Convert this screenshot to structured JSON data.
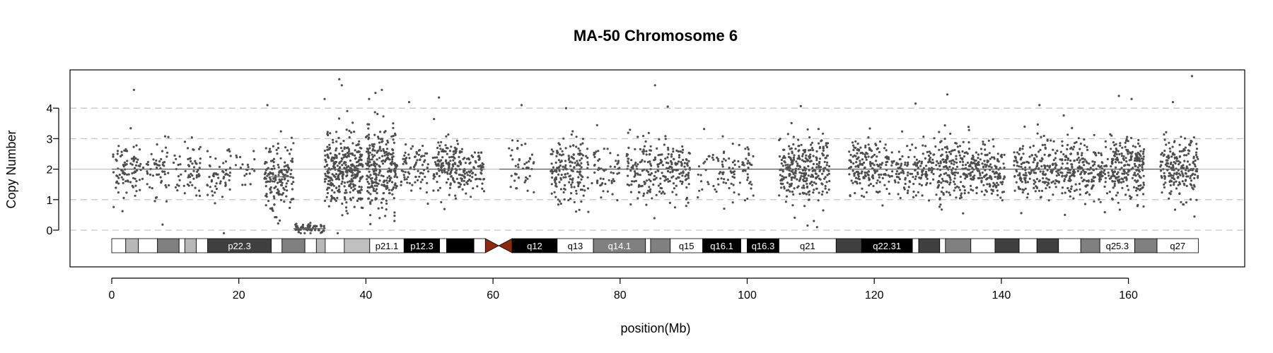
{
  "chart_data": {
    "type": "scatter",
    "title": "MA-50  Chromosome 6",
    "xlabel": "position(Mb)",
    "ylabel": "Copy Number",
    "xlim": [
      0,
      171
    ],
    "ylim": [
      -1.2,
      5.0
    ],
    "x_ticks": [
      0,
      20,
      40,
      60,
      80,
      100,
      120,
      140,
      160
    ],
    "y_ticks": [
      0,
      1,
      2,
      3,
      4
    ],
    "dashed_grid_y": [
      0,
      1,
      3,
      4
    ],
    "solid_grid_y": [
      2
    ],
    "point_color": "#4d4d4d",
    "segments": [
      {
        "x": [
          0.0,
          25.0
        ],
        "y": 2.0
      },
      {
        "x": [
          25.0,
          28.6
        ],
        "y": 1.75
      },
      {
        "x": [
          28.6,
          33.5
        ],
        "y": 0.05
      },
      {
        "x": [
          33.5,
          58.7
        ],
        "y": 2.0
      },
      {
        "x": [
          61.0,
          171.0
        ],
        "y": 2.0
      }
    ],
    "point_clusters": [
      {
        "x": [
          0.2,
          5.0
        ],
        "n": 90,
        "mean": 2.0,
        "sd": 0.45
      },
      {
        "x": [
          5.5,
          9.0
        ],
        "n": 55,
        "mean": 2.0,
        "sd": 0.45
      },
      {
        "x": [
          9.5,
          14.0
        ],
        "n": 60,
        "mean": 2.0,
        "sd": 0.45
      },
      {
        "x": [
          15.0,
          19.0
        ],
        "n": 55,
        "mean": 1.9,
        "sd": 0.5
      },
      {
        "x": [
          19.5,
          22.5
        ],
        "n": 20,
        "mean": 2.1,
        "sd": 0.4
      },
      {
        "x": [
          24.0,
          28.6
        ],
        "n": 160,
        "mean": 1.7,
        "sd": 0.55
      },
      {
        "x": [
          28.6,
          33.5
        ],
        "n": 70,
        "mean": 0.05,
        "sd": 0.08
      },
      {
        "x": [
          33.5,
          39.5
        ],
        "n": 330,
        "mean": 2.0,
        "sd": 0.6
      },
      {
        "x": [
          40.0,
          45.0
        ],
        "n": 260,
        "mean": 2.0,
        "sd": 0.6
      },
      {
        "x": [
          45.5,
          50.0
        ],
        "n": 80,
        "mean": 2.05,
        "sd": 0.45
      },
      {
        "x": [
          50.5,
          55.0
        ],
        "n": 150,
        "mean": 2.1,
        "sd": 0.45
      },
      {
        "x": [
          55.0,
          58.6
        ],
        "n": 80,
        "mean": 2.0,
        "sd": 0.4
      },
      {
        "x": [
          62.5,
          66.5
        ],
        "n": 45,
        "mean": 2.1,
        "sd": 0.45
      },
      {
        "x": [
          69.0,
          75.0
        ],
        "n": 170,
        "mean": 2.0,
        "sd": 0.5
      },
      {
        "x": [
          75.5,
          80.0
        ],
        "n": 55,
        "mean": 2.0,
        "sd": 0.45
      },
      {
        "x": [
          81.0,
          86.0
        ],
        "n": 110,
        "mean": 2.0,
        "sd": 0.5
      },
      {
        "x": [
          86.0,
          91.0
        ],
        "n": 130,
        "mean": 1.95,
        "sd": 0.45
      },
      {
        "x": [
          92.0,
          96.0
        ],
        "n": 30,
        "mean": 2.0,
        "sd": 0.5
      },
      {
        "x": [
          96.0,
          101.0
        ],
        "n": 70,
        "mean": 2.0,
        "sd": 0.45
      },
      {
        "x": [
          105.0,
          113.0
        ],
        "n": 290,
        "mean": 2.0,
        "sd": 0.55
      },
      {
        "x": [
          116.0,
          121.0
        ],
        "n": 150,
        "mean": 2.05,
        "sd": 0.45
      },
      {
        "x": [
          121.0,
          127.0
        ],
        "n": 110,
        "mean": 2.0,
        "sd": 0.45
      },
      {
        "x": [
          127.0,
          135.0
        ],
        "n": 230,
        "mean": 2.0,
        "sd": 0.5
      },
      {
        "x": [
          135.0,
          140.5
        ],
        "n": 170,
        "mean": 1.95,
        "sd": 0.45
      },
      {
        "x": [
          142.0,
          146.0
        ],
        "n": 110,
        "mean": 2.0,
        "sd": 0.45
      },
      {
        "x": [
          146.0,
          152.0
        ],
        "n": 170,
        "mean": 1.95,
        "sd": 0.5
      },
      {
        "x": [
          152.0,
          157.0
        ],
        "n": 130,
        "mean": 1.95,
        "sd": 0.45
      },
      {
        "x": [
          157.0,
          162.5
        ],
        "n": 220,
        "mean": 2.05,
        "sd": 0.5
      },
      {
        "x": [
          165.0,
          171.0
        ],
        "n": 200,
        "mean": 2.0,
        "sd": 0.5
      }
    ],
    "outliers": [
      {
        "x": 3.5,
        "y": 4.6
      },
      {
        "x": 24.5,
        "y": 4.1
      },
      {
        "x": 35.8,
        "y": 4.95
      },
      {
        "x": 36.2,
        "y": 4.75
      },
      {
        "x": 41.5,
        "y": 4.5
      },
      {
        "x": 42.5,
        "y": 4.6
      },
      {
        "x": 46.8,
        "y": 4.2
      },
      {
        "x": 51.5,
        "y": 4.35
      },
      {
        "x": 64.5,
        "y": 4.1
      },
      {
        "x": 71.5,
        "y": 4.0
      },
      {
        "x": 85.5,
        "y": 4.75
      },
      {
        "x": 87.5,
        "y": 4.05
      },
      {
        "x": 126.5,
        "y": 4.15
      },
      {
        "x": 131.5,
        "y": 4.45
      },
      {
        "x": 146.0,
        "y": 4.1
      },
      {
        "x": 158.5,
        "y": 4.4
      },
      {
        "x": 160.5,
        "y": 4.3
      },
      {
        "x": 167.0,
        "y": 4.2
      },
      {
        "x": 170.0,
        "y": 5.05
      },
      {
        "x": 33.5,
        "y": 4.3
      },
      {
        "x": 40.5,
        "y": 4.3
      },
      {
        "x": 44.5,
        "y": 0.3
      },
      {
        "x": 109.5,
        "y": 0.15
      },
      {
        "x": 111.0,
        "y": 0.1
      },
      {
        "x": 110.5,
        "y": 0.3
      },
      {
        "x": 150.0,
        "y": 0.5
      },
      {
        "x": 75.0,
        "y": 0.6
      }
    ],
    "ideogram": {
      "centromere": [
        58.8,
        63.0
      ],
      "centromere_color": "#8b2a10",
      "bands": [
        {
          "s": 0.0,
          "e": 2.2,
          "c": "#ffffff",
          "label": ""
        },
        {
          "s": 2.2,
          "e": 4.2,
          "c": "#b8b8b8",
          "label": ""
        },
        {
          "s": 4.2,
          "e": 7.2,
          "c": "#ffffff",
          "label": ""
        },
        {
          "s": 7.2,
          "e": 10.6,
          "c": "#808080",
          "label": ""
        },
        {
          "s": 10.6,
          "e": 11.5,
          "c": "#ffffff",
          "label": ""
        },
        {
          "s": 11.5,
          "e": 13.3,
          "c": "#b8b8b8",
          "label": ""
        },
        {
          "s": 13.3,
          "e": 15.1,
          "c": "#ffffff",
          "label": ""
        },
        {
          "s": 15.1,
          "e": 25.1,
          "c": "#404040",
          "label": "p22.3",
          "lc": "#ffffff"
        },
        {
          "s": 25.1,
          "e": 26.8,
          "c": "#ffffff",
          "label": ""
        },
        {
          "s": 26.8,
          "e": 30.4,
          "c": "#808080",
          "label": ""
        },
        {
          "s": 30.4,
          "e": 32.2,
          "c": "#ffffff",
          "label": ""
        },
        {
          "s": 32.2,
          "e": 33.6,
          "c": "#b8b8b8",
          "label": ""
        },
        {
          "s": 33.6,
          "e": 36.6,
          "c": "#ffffff",
          "label": ""
        },
        {
          "s": 36.6,
          "e": 40.6,
          "c": "#c0c0c0",
          "label": ""
        },
        {
          "s": 40.6,
          "e": 46.0,
          "c": "#ffffff",
          "label": "p21.1",
          "lc": "#000000"
        },
        {
          "s": 46.0,
          "e": 51.6,
          "c": "#000000",
          "label": "p12.3",
          "lc": "#ffffff"
        },
        {
          "s": 51.6,
          "e": 52.7,
          "c": "#ffffff",
          "label": ""
        },
        {
          "s": 52.7,
          "e": 57.0,
          "c": "#000000",
          "label": ""
        },
        {
          "s": 57.0,
          "e": 58.8,
          "c": "#ffffff",
          "label": ""
        },
        {
          "s": 63.0,
          "e": 70.1,
          "c": "#000000",
          "label": "q12",
          "lc": "#ffffff"
        },
        {
          "s": 70.1,
          "e": 75.8,
          "c": "#ffffff",
          "label": "q13",
          "lc": "#000000"
        },
        {
          "s": 75.8,
          "e": 84.0,
          "c": "#808080",
          "label": "q14.1",
          "lc": "#ffffff"
        },
        {
          "s": 84.0,
          "e": 84.8,
          "c": "#ffffff",
          "label": ""
        },
        {
          "s": 84.8,
          "e": 87.9,
          "c": "#808080",
          "label": ""
        },
        {
          "s": 87.9,
          "e": 93.0,
          "c": "#ffffff",
          "label": "q15",
          "lc": "#000000"
        },
        {
          "s": 93.0,
          "e": 99.0,
          "c": "#000000",
          "label": "q16.1",
          "lc": "#ffffff"
        },
        {
          "s": 99.0,
          "e": 100.0,
          "c": "#ffffff",
          "label": ""
        },
        {
          "s": 100.0,
          "e": 105.0,
          "c": "#000000",
          "label": "q16.3",
          "lc": "#ffffff"
        },
        {
          "s": 105.0,
          "e": 114.0,
          "c": "#ffffff",
          "label": "q21",
          "lc": "#000000"
        },
        {
          "s": 114.0,
          "e": 118.0,
          "c": "#404040",
          "label": ""
        },
        {
          "s": 118.0,
          "e": 126.0,
          "c": "#000000",
          "label": "q22.31",
          "lc": "#ffffff"
        },
        {
          "s": 126.0,
          "e": 127.0,
          "c": "#ffffff",
          "label": ""
        },
        {
          "s": 127.0,
          "e": 130.3,
          "c": "#404040",
          "label": ""
        },
        {
          "s": 130.3,
          "e": 131.2,
          "c": "#ffffff",
          "label": ""
        },
        {
          "s": 131.2,
          "e": 135.2,
          "c": "#808080",
          "label": ""
        },
        {
          "s": 135.2,
          "e": 139.0,
          "c": "#ffffff",
          "label": ""
        },
        {
          "s": 139.0,
          "e": 142.8,
          "c": "#404040",
          "label": ""
        },
        {
          "s": 142.8,
          "e": 145.6,
          "c": "#ffffff",
          "label": ""
        },
        {
          "s": 145.6,
          "e": 149.0,
          "c": "#404040",
          "label": ""
        },
        {
          "s": 149.0,
          "e": 152.5,
          "c": "#ffffff",
          "label": ""
        },
        {
          "s": 152.5,
          "e": 155.5,
          "c": "#808080",
          "label": ""
        },
        {
          "s": 155.5,
          "e": 161.0,
          "c": "#ffffff",
          "label": "q25.3",
          "lc": "#000000"
        },
        {
          "s": 161.0,
          "e": 164.5,
          "c": "#808080",
          "label": ""
        },
        {
          "s": 164.5,
          "e": 171.0,
          "c": "#ffffff",
          "label": "q27",
          "lc": "#000000"
        }
      ]
    }
  }
}
